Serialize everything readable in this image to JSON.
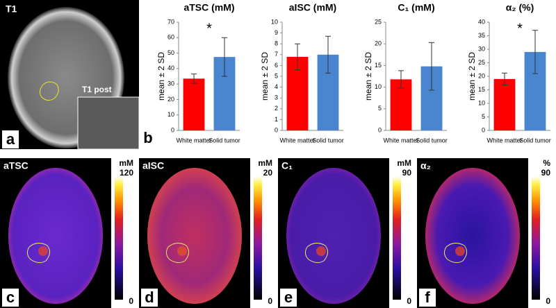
{
  "panel_a": {
    "label": "T1",
    "inset_label": "T1 post",
    "letter": "a"
  },
  "panel_b_letter": "b",
  "chart_data": [
    {
      "type": "bar",
      "title": "aTSC (mM)",
      "y_label": "mean ± 2 SD",
      "categories": [
        "White matter",
        "Solid tumor"
      ],
      "values": [
        33.5,
        47.5
      ],
      "errors": [
        3,
        12.5
      ],
      "colors": [
        "#ff0000",
        "#4a86d0"
      ],
      "ylim": [
        0,
        70
      ],
      "yticks": [
        0,
        10,
        20,
        30,
        40,
        50,
        60,
        70
      ],
      "annotation": "*"
    },
    {
      "type": "bar",
      "title": "aISC (mM)",
      "y_label": "mean ± 2 SD",
      "categories": [
        "White matter",
        "Solid tumor"
      ],
      "values": [
        6.8,
        7.0
      ],
      "errors": [
        1.2,
        1.7
      ],
      "colors": [
        "#ff0000",
        "#4a86d0"
      ],
      "ylim": [
        0,
        10
      ],
      "yticks": [
        0,
        1,
        2,
        3,
        4,
        5,
        6,
        7,
        8,
        9,
        10
      ]
    },
    {
      "type": "bar",
      "title": "C₁ (mM)",
      "y_label": "mean ± 2 SD",
      "categories": [
        "White matter",
        "Solid tumor"
      ],
      "values": [
        11.8,
        14.8
      ],
      "errors": [
        2,
        5.5
      ],
      "colors": [
        "#ff0000",
        "#4a86d0"
      ],
      "ylim": [
        0,
        25
      ],
      "yticks": [
        0,
        5,
        10,
        15,
        20,
        25
      ]
    },
    {
      "type": "bar",
      "title": "α₂ (%)",
      "y_label": "mean ± 2 SD",
      "categories": [
        "White matter",
        "Solid tumor"
      ],
      "values": [
        19,
        29
      ],
      "errors": [
        2.2,
        8
      ],
      "colors": [
        "#ff0000",
        "#4a86d0"
      ],
      "ylim": [
        0,
        40
      ],
      "yticks": [
        0,
        5,
        10,
        15,
        20,
        25,
        30,
        35,
        40
      ],
      "annotation": "*"
    }
  ],
  "maps": [
    {
      "name": "aTSC",
      "unit": "mM",
      "max": 120,
      "min": 0,
      "letter": "c"
    },
    {
      "name": "aISC",
      "unit": "mM",
      "max": 20,
      "min": 0,
      "letter": "d"
    },
    {
      "name": "C₁",
      "unit": "mM",
      "max": 90,
      "min": 0,
      "letter": "e"
    },
    {
      "name": "α₂",
      "unit": "%",
      "max": 90,
      "min": 0,
      "letter": "f"
    }
  ]
}
